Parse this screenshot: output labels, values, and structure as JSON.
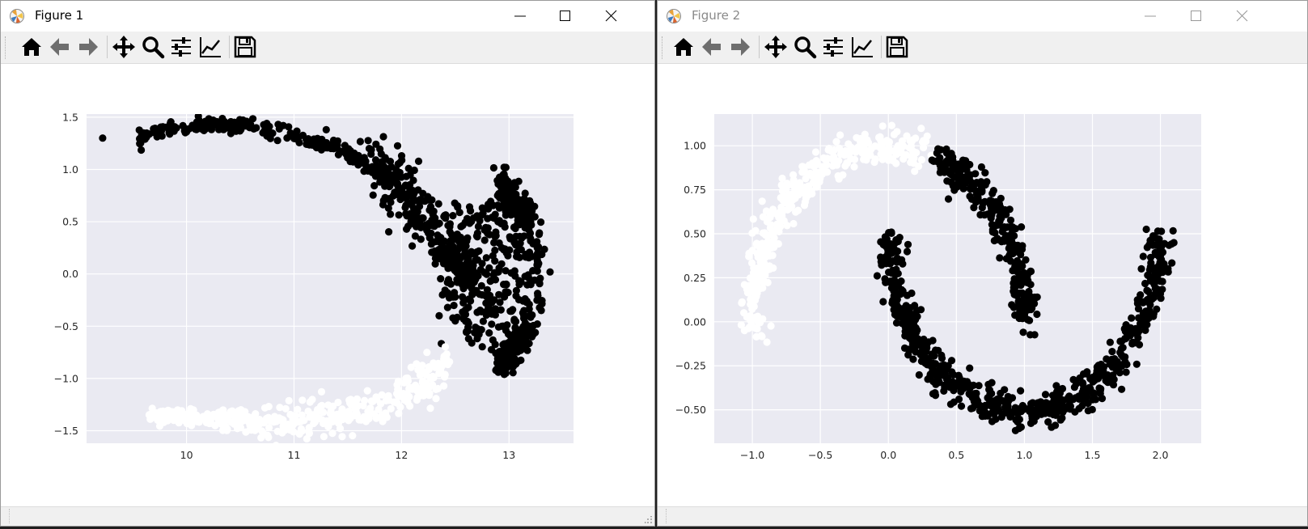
{
  "windows": [
    {
      "title": "Figure 1",
      "active": true
    },
    {
      "title": "Figure 2",
      "active": false
    }
  ],
  "toolbar_icons": [
    "home-icon",
    "back-arrow-icon",
    "forward-arrow-icon",
    "pan-icon",
    "zoom-icon",
    "subplots-config-icon",
    "edit-axes-icon",
    "save-icon"
  ],
  "colors": {
    "plot_bg": "#eaeaf2",
    "grid": "#ffffff",
    "cluster_dark": "#000000",
    "cluster_light": "#ffffff"
  },
  "chart_data": [
    {
      "type": "scatter",
      "title": "",
      "xlabel": "",
      "ylabel": "",
      "xlim": [
        9.07,
        13.6
      ],
      "ylim": [
        -1.62,
        1.53
      ],
      "xticks": [
        10,
        11,
        12,
        13
      ],
      "yticks": [
        -1.5,
        -1.0,
        -0.5,
        0.0,
        0.5,
        1.0,
        1.5
      ],
      "grid": true,
      "legend": "none",
      "series": [
        {
          "color": "#000000",
          "description_points": [
            [
              9.22,
              1.3
            ],
            [
              9.6,
              1.35
            ],
            [
              10.0,
              1.36
            ],
            [
              10.5,
              1.4
            ],
            [
              10.9,
              1.42
            ],
            [
              11.3,
              1.38
            ],
            [
              11.7,
              1.2
            ],
            [
              11.95,
              1.0
            ],
            [
              12.1,
              0.8
            ],
            [
              12.3,
              0.6
            ],
            [
              12.55,
              0.35
            ],
            [
              12.75,
              0.1
            ],
            [
              12.95,
              -0.1
            ],
            [
              13.05,
              0.3
            ],
            [
              13.2,
              0.55
            ],
            [
              13.0,
              0.8
            ],
            [
              13.05,
              -0.45
            ],
            [
              12.95,
              -0.85
            ],
            [
              12.5,
              -0.45
            ],
            [
              12.75,
              -0.2
            ],
            [
              12.35,
              -0.4
            ],
            [
              13.3,
              -0.35
            ]
          ]
        },
        {
          "color": "#ffffff",
          "description_points": [
            [
              9.65,
              -1.2
            ],
            [
              9.7,
              -1.32
            ],
            [
              10.0,
              -1.37
            ],
            [
              10.5,
              -1.42
            ],
            [
              11.0,
              -1.42
            ],
            [
              11.5,
              -1.35
            ],
            [
              11.8,
              -1.2
            ],
            [
              12.0,
              -1.0
            ],
            [
              12.2,
              -0.8
            ],
            [
              12.35,
              -0.65
            ],
            [
              12.42,
              -0.55
            ]
          ]
        }
      ]
    },
    {
      "type": "scatter",
      "title": "",
      "xlabel": "",
      "ylabel": "",
      "xlim": [
        -1.28,
        2.3
      ],
      "ylim": [
        -0.69,
        1.18
      ],
      "xticks": [
        -1.0,
        -0.5,
        0.0,
        0.5,
        1.0,
        1.5,
        2.0
      ],
      "xtick_labels": [
        "−1.0",
        "−0.5",
        "0.0",
        "0.5",
        "1.0",
        "1.5",
        "2.0"
      ],
      "yticks": [
        -0.5,
        -0.25,
        0.0,
        0.25,
        0.5,
        0.75,
        1.0
      ],
      "ytick_labels": [
        "−0.50",
        "−0.25",
        "0.00",
        "0.25",
        "0.50",
        "0.75",
        "1.00"
      ],
      "grid": true,
      "legend": "none",
      "series": [
        {
          "color": "#000000",
          "shape": "lower moon plus upper-right arc",
          "lower_moon_x_range": [
            0.0,
            2.0
          ],
          "arc_x_range": [
            0.3,
            1.0
          ]
        },
        {
          "color": "#ffffff",
          "shape": "upper-left moon",
          "x_range": [
            -1.0,
            0.35
          ]
        }
      ]
    }
  ]
}
